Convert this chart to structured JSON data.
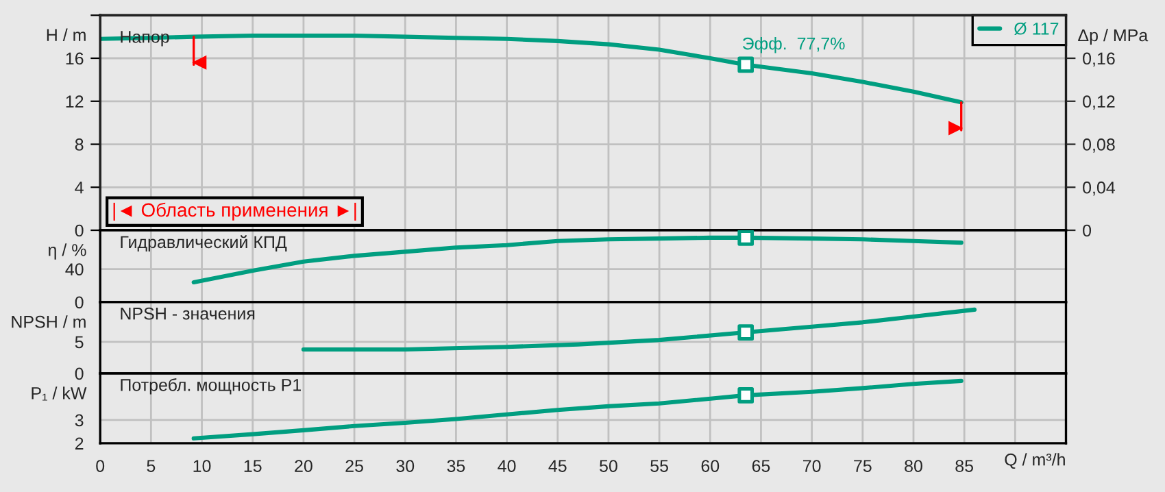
{
  "chart_data": [
    {
      "type": "line",
      "title": "Напор",
      "ylabel": "H / m",
      "y2label": "Δp / MPa",
      "xlim": [
        0,
        95
      ],
      "xticks": [
        0,
        5,
        10,
        15,
        20,
        25,
        30,
        35,
        40,
        45,
        50,
        55,
        60,
        65,
        70,
        75,
        80,
        85,
        90
      ],
      "ylim": [
        0,
        20
      ],
      "yticks": [
        0,
        4,
        8,
        12,
        16,
        {
          "value": 20,
          "label": null
        }
      ],
      "y2lim": [
        0,
        0.2
      ],
      "y2ticks": [
        0,
        {
          "value": 0.04,
          "label": "0,04"
        },
        {
          "value": 0.08,
          "label": "0,08"
        },
        {
          "value": 0.12,
          "label": "0,12"
        },
        {
          "value": 0.16,
          "label": "0,16"
        }
      ],
      "tick_labels": "y",
      "grid": true,
      "legend": "top right",
      "series": [
        {
          "name": "Ø 117",
          "color": "#009e80",
          "x": [
            0,
            5,
            9.2,
            15,
            20,
            25,
            30,
            35,
            40,
            45,
            50,
            55,
            60,
            63.5,
            70,
            75,
            80,
            84.7
          ],
          "values": [
            17.8,
            17.9,
            18.0,
            18.1,
            18.1,
            18.1,
            18.0,
            17.9,
            17.8,
            17.6,
            17.3,
            16.8,
            16.0,
            15.4,
            14.6,
            13.8,
            12.9,
            11.9
          ]
        },
        {
          "type": "scatter",
          "marker": "square",
          "color": "#009e80",
          "x": [
            63.5
          ],
          "values": [
            15.4
          ]
        }
      ],
      "ref_lines": [
        {
          "axis": "x",
          "value": 9.2,
          "color": "#ff0000"
        },
        {
          "axis": "x",
          "value": 84.7,
          "color": "#ff0000"
        }
      ],
      "annotations": [
        {
          "text": "Эфф.  77,7%",
          "x": 63.5,
          "y": 15.4
        },
        "|◄ Область применения ►|"
      ]
    },
    {
      "type": "line",
      "title": "Гидравлический КПД",
      "ylabel": "η / %",
      "xlim": [
        0,
        95
      ],
      "xticks": [
        0,
        5,
        10,
        15,
        20,
        25,
        30,
        35,
        40,
        45,
        50,
        55,
        60,
        65,
        70,
        75,
        80,
        85,
        90
      ],
      "ylim": [
        0,
        87
      ],
      "yticks": [
        0,
        40
      ],
      "tick_labels": "y",
      "grid": true,
      "series": [
        {
          "color": "#009e80",
          "x": [
            9.2,
            15,
            20,
            25,
            30,
            35,
            40,
            45,
            50,
            55,
            60,
            63.5,
            70,
            75,
            80,
            84.7
          ],
          "values": [
            24,
            38,
            49,
            56,
            61,
            66,
            69,
            74,
            76,
            77,
            78,
            78,
            77,
            76,
            74,
            72
          ]
        },
        {
          "type": "scatter",
          "marker": "square",
          "color": "#009e80",
          "x": [
            63.5
          ],
          "values": [
            78
          ]
        }
      ]
    },
    {
      "type": "line",
      "title": "NPSH - значения",
      "ylabel": "NPSH / m",
      "xlim": [
        0,
        95
      ],
      "xticks": [
        0,
        5,
        10,
        15,
        20,
        25,
        30,
        35,
        40,
        45,
        50,
        55,
        60,
        65,
        70,
        75,
        80,
        85,
        90
      ],
      "ylim": [
        0,
        11.3
      ],
      "yticks": [
        0,
        5
      ],
      "tick_labels": "y",
      "grid": true,
      "series": [
        {
          "color": "#009e80",
          "x": [
            20,
            30,
            40,
            47,
            55,
            63.5,
            70,
            75,
            80,
            86
          ],
          "values": [
            3.8,
            3.8,
            4.2,
            4.6,
            5.3,
            6.5,
            7.4,
            8.1,
            9.0,
            10.1
          ]
        },
        {
          "type": "scatter",
          "marker": "square",
          "color": "#009e80",
          "x": [
            63.5
          ],
          "values": [
            6.5
          ]
        }
      ]
    },
    {
      "type": "line",
      "title": "Потребл. мощность P1",
      "ylabel": "P₁ / kW",
      "xlabel": "Q / m³/h",
      "xlim": [
        0,
        95
      ],
      "xticks": [
        0,
        5,
        10,
        15,
        20,
        25,
        30,
        35,
        40,
        45,
        50,
        55,
        60,
        65,
        70,
        75,
        80,
        85,
        {
          "value": 90,
          "label": null
        }
      ],
      "ylim": [
        2,
        5
      ],
      "yticks": [
        2,
        3
      ],
      "grid": true,
      "series": [
        {
          "color": "#009e80",
          "x": [
            9.2,
            15,
            20,
            25,
            30,
            35,
            40,
            45,
            50,
            55,
            63.5,
            70,
            75,
            80,
            84.7
          ],
          "values": [
            2.21,
            2.39,
            2.56,
            2.74,
            2.88,
            3.04,
            3.24,
            3.43,
            3.59,
            3.71,
            4.06,
            4.21,
            4.37,
            4.55,
            4.68
          ]
        },
        {
          "type": "scatter",
          "marker": "square",
          "color": "#009e80",
          "x": [
            63.5
          ],
          "values": [
            4.06
          ]
        }
      ]
    }
  ]
}
